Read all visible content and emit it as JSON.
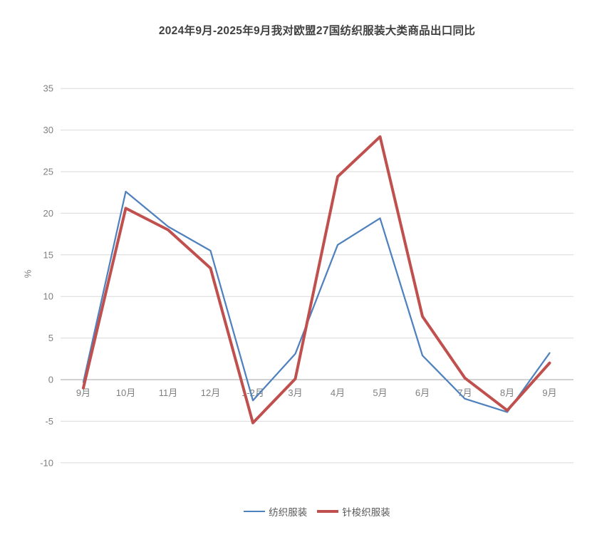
{
  "chart": {
    "title": "2024年9月-2025年9月我对欧盟27国纺织服装大类商品出口同比"
  },
  "chart_data": {
    "type": "line",
    "title": "2024年9月-2025年9月我对欧盟27国纺织服装大类商品出口同比",
    "categories": [
      "9月",
      "10月",
      "11月",
      "12月",
      "1-2月",
      "3月",
      "4月",
      "5月",
      "6月",
      "7月",
      "8月",
      "9月"
    ],
    "series": [
      {
        "name": "纺织服装",
        "color": "#4F81BD",
        "line_width": 2.25,
        "values": [
          -0.3,
          22.6,
          18.4,
          15.5,
          -2.5,
          3.1,
          16.2,
          19.4,
          2.9,
          -2.3,
          -3.9,
          3.2
        ]
      },
      {
        "name": "针梭织服装",
        "color": "#C0504D",
        "line_width": 4,
        "values": [
          -1.0,
          20.6,
          18.0,
          13.4,
          -5.2,
          0.1,
          24.4,
          29.2,
          7.6,
          0.2,
          -3.7,
          2.0
        ]
      }
    ],
    "xlabel": "",
    "ylabel": "%",
    "ylim": [
      -10,
      35
    ],
    "ytick_step": 5,
    "grid": true,
    "gridline_color": "#d9d9d9",
    "zero_axis_color": "#a6a6a6",
    "legend_position": "bottom"
  }
}
